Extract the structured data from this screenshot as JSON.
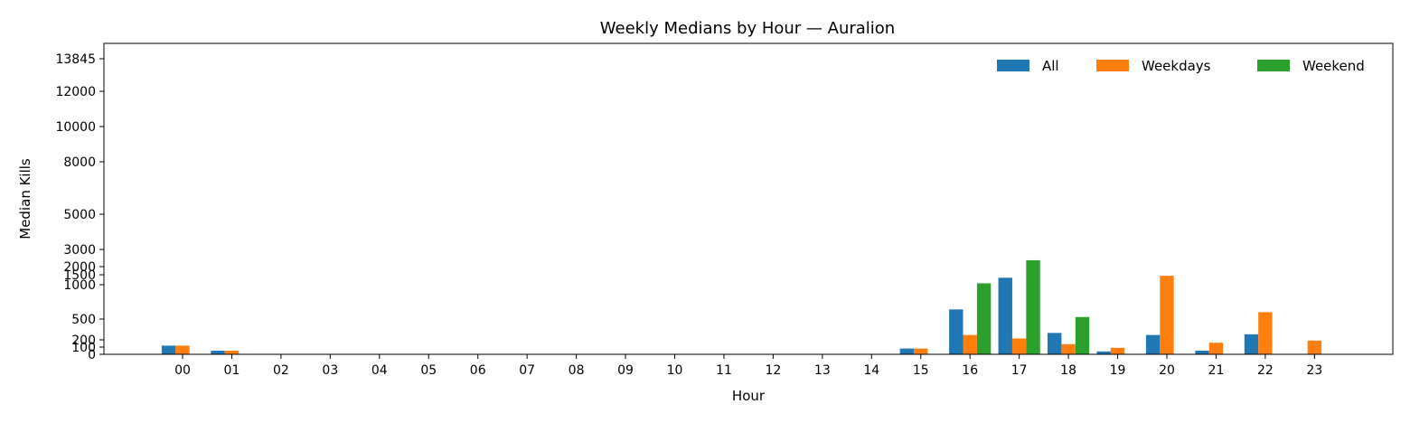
{
  "chart_data": {
    "type": "bar",
    "title": "Weekly Medians by Hour — Auralion",
    "xlabel": "Hour",
    "ylabel": "Median Kills",
    "categories": [
      "00",
      "01",
      "02",
      "03",
      "04",
      "05",
      "06",
      "07",
      "08",
      "09",
      "10",
      "11",
      "12",
      "13",
      "14",
      "15",
      "16",
      "17",
      "18",
      "19",
      "20",
      "21",
      "22",
      "23"
    ],
    "series": [
      {
        "name": "All",
        "color": "#1f77b4",
        "values": [
          120,
          50,
          0,
          0,
          0,
          0,
          0,
          0,
          0,
          0,
          0,
          0,
          0,
          0,
          0,
          80,
          640,
          1350,
          300,
          40,
          270,
          50,
          280,
          0
        ]
      },
      {
        "name": "Weekdays",
        "color": "#ff7f0e",
        "values": [
          120,
          50,
          0,
          0,
          0,
          0,
          0,
          0,
          0,
          0,
          0,
          0,
          0,
          0,
          0,
          80,
          270,
          220,
          140,
          90,
          1450,
          160,
          600,
          190
        ]
      },
      {
        "name": "Weekend",
        "color": "#2ca02c",
        "values": [
          0,
          0,
          0,
          0,
          0,
          0,
          0,
          0,
          0,
          0,
          0,
          0,
          0,
          0,
          0,
          0,
          1070,
          2370,
          530,
          0,
          0,
          0,
          0,
          0
        ]
      }
    ],
    "yticks": [
      0,
      100,
      200,
      500,
      1000,
      1500,
      2000,
      3000,
      5000,
      8000,
      10000,
      12000,
      13845
    ],
    "ylim": [
      0,
      16000
    ],
    "y_scale": "nonlinear",
    "grid": false,
    "legend_position": "top-right"
  }
}
